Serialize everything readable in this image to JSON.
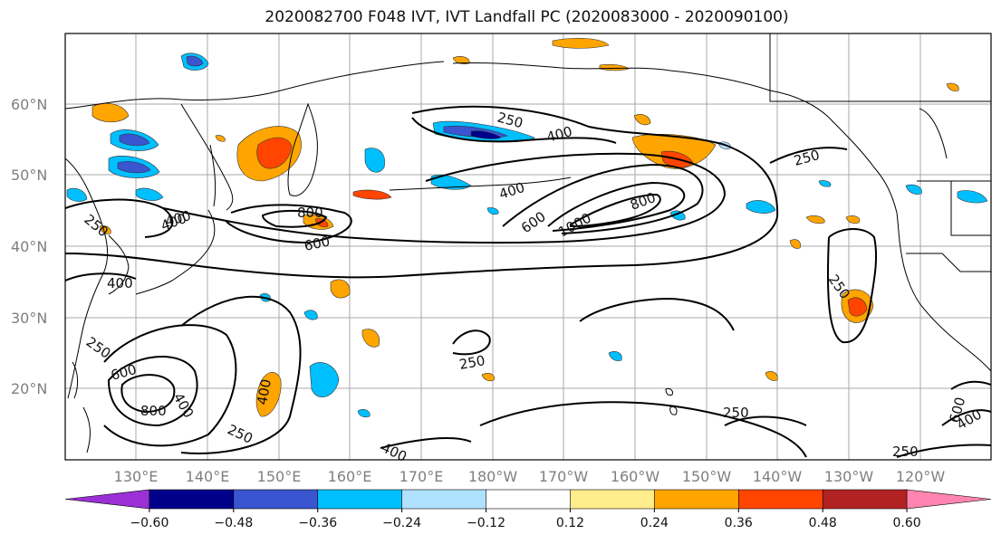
{
  "title": "2020082700 F048 IVT, IVT Landfall PC (2020083000 - 2020090100)",
  "lat_labels": [
    "60°N",
    "50°N",
    "40°N",
    "30°N",
    "20°N"
  ],
  "lon_labels": [
    "130°E",
    "140°E",
    "150°E",
    "160°E",
    "170°E",
    "180°W",
    "170°W",
    "160°W",
    "150°W",
    "140°W",
    "130°W",
    "120°W"
  ],
  "contour_labels": [
    "250",
    "400",
    "400",
    "250",
    "400",
    "800",
    "600",
    "600",
    "1000",
    "800",
    "400",
    "250",
    "250",
    "250",
    "600",
    "800",
    "400",
    "250",
    "400",
    "250",
    "250",
    "600",
    "400",
    "250",
    "400",
    "400"
  ],
  "colorbar": {
    "colors": [
      "#9b30d6",
      "#00008b",
      "#3a55d0",
      "#00bfff",
      "#b0e2ff",
      "#ffffff",
      "#ffec8b",
      "#ffa500",
      "#ff4500",
      "#b22222",
      "#ff85b0"
    ],
    "tick_labels": [
      "−0.60",
      "−0.48",
      "−0.36",
      "−0.24",
      "−0.12",
      "0.12",
      "0.24",
      "0.36",
      "0.48",
      "0.60"
    ]
  }
}
